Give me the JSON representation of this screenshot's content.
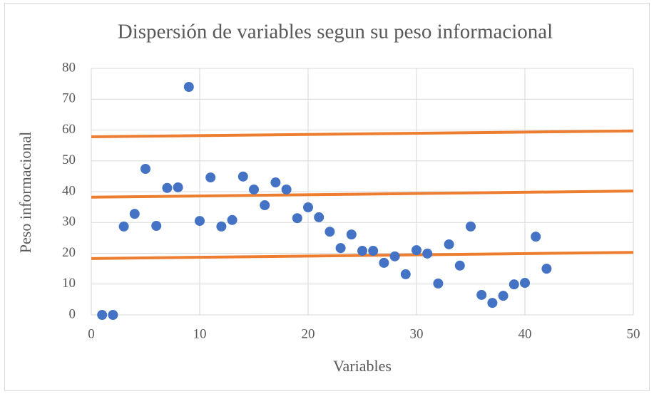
{
  "chart_data": {
    "type": "scatter",
    "title": "Dispersión de variables segun su peso informacional",
    "x_label": "Variables",
    "y_label": "Peso informacional",
    "xlim": [
      0,
      50
    ],
    "xticks": [
      0,
      10,
      20,
      30,
      40,
      50
    ],
    "ylim": [
      0,
      80
    ],
    "yticks": [
      0,
      10,
      20,
      30,
      40,
      50,
      60,
      70,
      80
    ],
    "grid": true,
    "series": [
      {
        "color": "#4472c4",
        "x": [
          1,
          2,
          3,
          4,
          5,
          6,
          7,
          8,
          9,
          10,
          11,
          12,
          13,
          14,
          15,
          16,
          17,
          18,
          19,
          20,
          21,
          22,
          23,
          24,
          25,
          26,
          27,
          28,
          29,
          30,
          31,
          32,
          33,
          34,
          35,
          36,
          37,
          38,
          39,
          40,
          41,
          42
        ],
        "values": [
          0,
          0,
          28.7,
          32.8,
          47.4,
          28.9,
          41.2,
          41.4,
          74,
          30.5,
          44.6,
          28.7,
          30.8,
          44.9,
          40.7,
          35.6,
          43,
          40.7,
          31.4,
          34.9,
          31.7,
          27,
          21.7,
          26.1,
          20.8,
          20.8,
          16.9,
          19,
          13.2,
          21,
          19.9,
          10.2,
          22.9,
          16,
          28.7,
          6.5,
          3.9,
          6.2,
          9.9,
          10.4,
          25.4,
          15
        ]
      }
    ],
    "lines": [
      {
        "color": "#ed7d31",
        "x": [
          0,
          50
        ],
        "values": [
          57.8,
          59.7
        ]
      },
      {
        "color": "#ed7d31",
        "x": [
          0,
          50
        ],
        "values": [
          38.2,
          40.2
        ]
      },
      {
        "color": "#ed7d31",
        "x": [
          0,
          50
        ],
        "values": [
          18.3,
          20.3
        ]
      }
    ]
  }
}
